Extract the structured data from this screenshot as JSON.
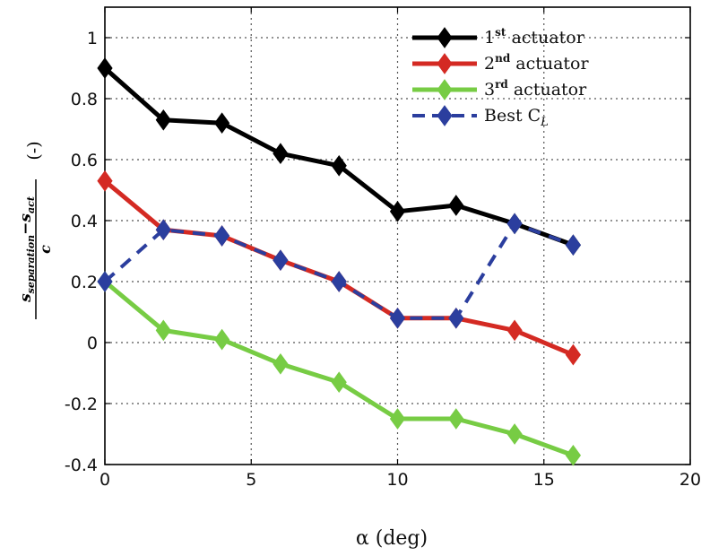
{
  "chart_data": {
    "type": "line",
    "xlabel": "α (deg)",
    "ylabel": "(s_separation − s_act) / c (-)",
    "ylabel_parts": {
      "numerator": "s",
      "numerator_sub1": "separation",
      "minus": "−s",
      "numerator_sub2": "act",
      "denominator": "c",
      "unit": "(-)"
    },
    "xlim": [
      0,
      20
    ],
    "ylim": [
      -0.4,
      1.1
    ],
    "xticks": [
      "0",
      "5",
      "10",
      "15",
      "20"
    ],
    "yticks": [
      "-0.4",
      "-0.2",
      "0",
      "0.2",
      "0.4",
      "0.6",
      "0.8",
      "1"
    ],
    "grid": true,
    "legend_position": "top-right",
    "series": [
      {
        "name": "1st actuator",
        "legend_main": "1",
        "legend_sup": "st",
        "legend_rest": " actuator",
        "color": "#000000",
        "marker": "diamond",
        "line": "solid",
        "x": [
          0,
          2,
          4,
          6,
          8,
          10,
          12,
          14,
          16
        ],
        "y": [
          0.9,
          0.73,
          0.72,
          0.62,
          0.58,
          0.43,
          0.45,
          0.39,
          0.32
        ]
      },
      {
        "name": "2nd actuator",
        "legend_main": "2",
        "legend_sup": "nd",
        "legend_rest": " actuator",
        "color": "#d42a23",
        "marker": "diamond",
        "line": "solid",
        "x": [
          0,
          2,
          4,
          6,
          8,
          10,
          12,
          14,
          16
        ],
        "y": [
          0.53,
          0.37,
          0.35,
          0.27,
          0.2,
          0.08,
          0.08,
          0.04,
          -0.04
        ]
      },
      {
        "name": "3rd actuator",
        "legend_main": "3",
        "legend_sup": "rd",
        "legend_rest": " actuator",
        "color": "#77cc44",
        "marker": "diamond",
        "line": "solid",
        "x": [
          0,
          2,
          4,
          6,
          8,
          10,
          12,
          14,
          16
        ],
        "y": [
          0.2,
          0.04,
          0.01,
          -0.07,
          -0.13,
          -0.25,
          -0.25,
          -0.3,
          -0.37
        ]
      },
      {
        "name": "Best C_L",
        "legend_main": "Best C",
        "legend_sup": "",
        "legend_sub": "L",
        "legend_rest": "",
        "color": "#2b3e9e",
        "marker": "diamond",
        "line": "dashed",
        "x": [
          0,
          2,
          4,
          6,
          8,
          10,
          12,
          14,
          16
        ],
        "y": [
          0.2,
          0.37,
          0.35,
          0.27,
          0.2,
          0.08,
          0.08,
          0.39,
          0.32
        ]
      }
    ]
  }
}
